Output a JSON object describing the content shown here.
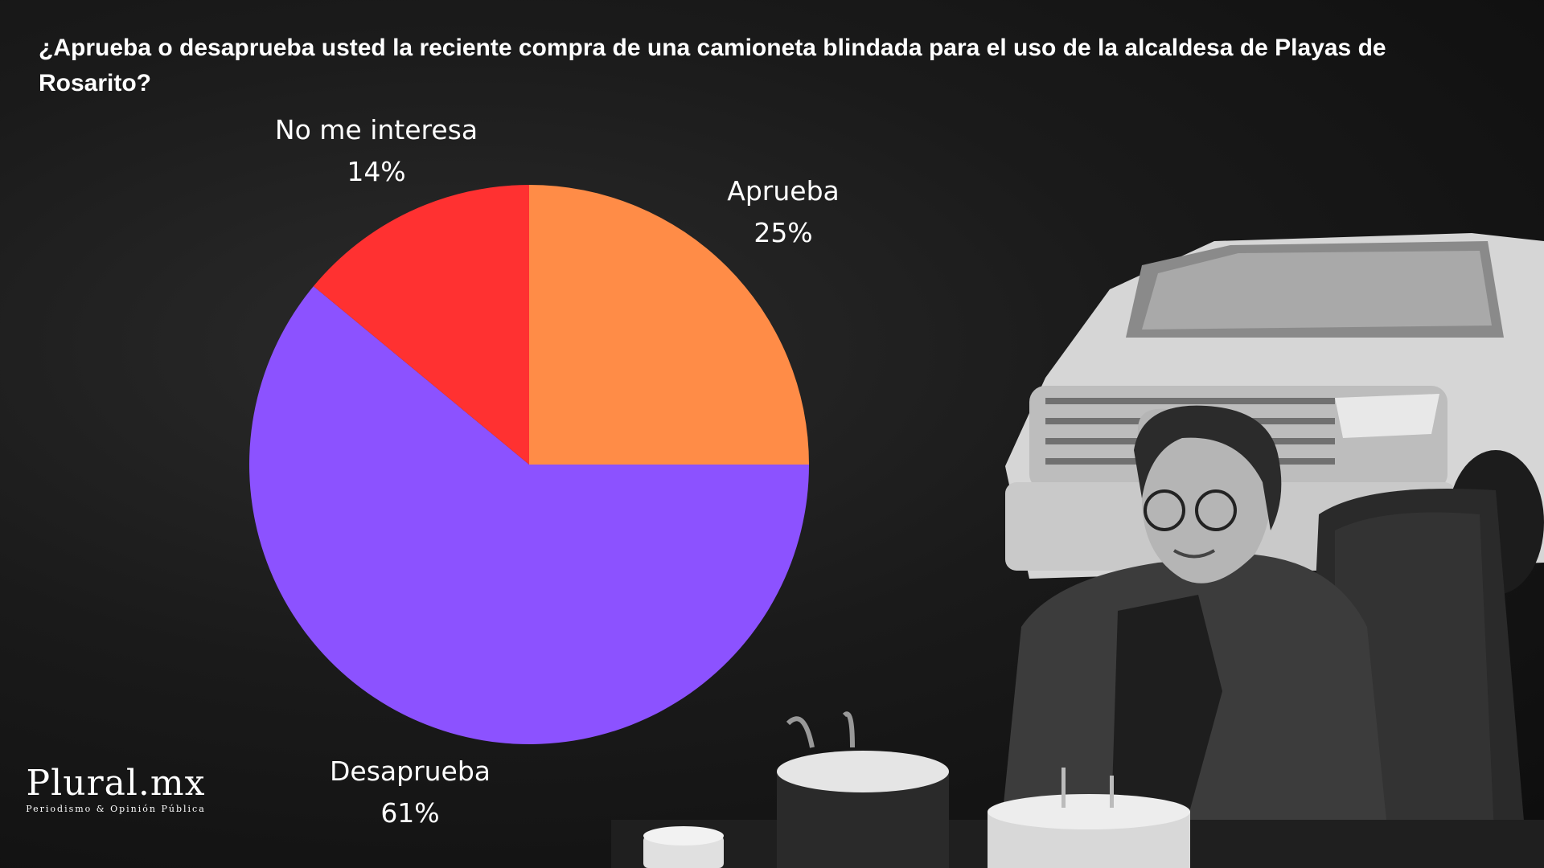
{
  "colors": {
    "aprueba": "#FF8C47",
    "desaprueba": "#8C52FF",
    "no_me_interesa": "#FF3131",
    "background": "#141414"
  },
  "chart_data": {
    "type": "pie",
    "title": "¿Aprueba o desaprueba usted la reciente compra de una camioneta blindada para el uso de la alcaldesa de Playas de Rosarito?",
    "start": "12 o'clock, clockwise",
    "legend": "none (labels beside slices)",
    "slices": [
      {
        "label": "Aprueba",
        "value": 25,
        "value_label": "25%",
        "color": "#FF8C47"
      },
      {
        "label": "Desaprueba",
        "value": 61,
        "value_label": "61%",
        "color": "#8C52FF"
      },
      {
        "label": "No me interesa",
        "value": 14,
        "value_label": "14%",
        "color": "#FF3131"
      }
    ]
  },
  "logo": {
    "main": "Plural.mx",
    "sub": "Periodismo & Opinión Pública"
  },
  "photo": {
    "description_icon": "photo-collage-icon"
  }
}
